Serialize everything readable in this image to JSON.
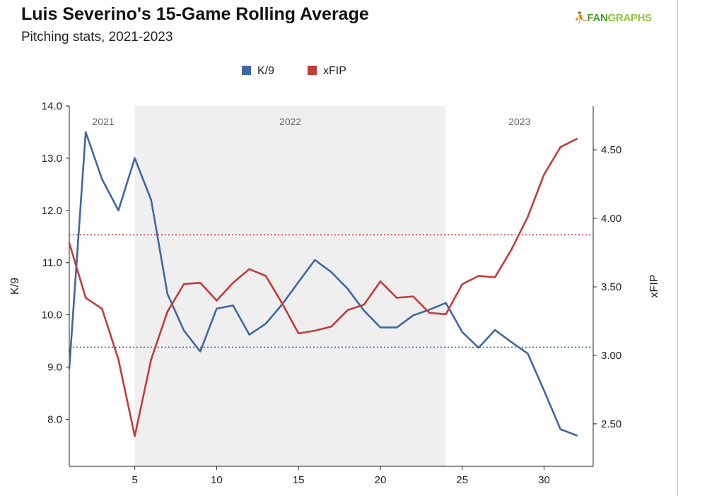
{
  "header": {
    "title": "Luis Severino's 15-Game Rolling Average",
    "subtitle": "Pitching stats, 2021-2023",
    "logo_fan": "FAN",
    "logo_graphs": "GRAPHS"
  },
  "chart_data": {
    "type": "line",
    "title": "Luis Severino's 15-Game Rolling Average",
    "subtitle": "Pitching stats, 2021-2023",
    "x": [
      1,
      2,
      3,
      4,
      5,
      6,
      7,
      8,
      9,
      10,
      11,
      12,
      13,
      14,
      15,
      16,
      17,
      18,
      19,
      20,
      21,
      22,
      23,
      24,
      25,
      26,
      27,
      28,
      29,
      30,
      31,
      32
    ],
    "xlim": [
      1,
      33
    ],
    "xticks": [
      5,
      10,
      15,
      20,
      25,
      30
    ],
    "series": [
      {
        "name": "K/9",
        "axis": "left",
        "color": "#3f67a0",
        "values": [
          8.98,
          13.5,
          12.6,
          12.0,
          13.0,
          12.2,
          10.4,
          9.7,
          9.3,
          10.12,
          10.18,
          9.62,
          9.83,
          10.2,
          10.63,
          11.05,
          10.82,
          10.5,
          10.08,
          9.76,
          9.76,
          9.99,
          10.1,
          10.23,
          9.67,
          9.37,
          9.71,
          9.48,
          9.26,
          8.55,
          7.81,
          7.69
        ]
      },
      {
        "name": "xFIP",
        "axis": "right",
        "color": "#c23b3b",
        "values": [
          3.82,
          3.42,
          3.34,
          2.97,
          2.41,
          2.97,
          3.32,
          3.52,
          3.53,
          3.4,
          3.53,
          3.63,
          3.58,
          3.38,
          3.16,
          3.18,
          3.21,
          3.33,
          3.37,
          3.54,
          3.42,
          3.43,
          3.31,
          3.3,
          3.52,
          3.58,
          3.57,
          3.77,
          4.01,
          4.32,
          4.52,
          4.58
        ]
      }
    ],
    "reference_lines": [
      {
        "axis": "left",
        "value": 9.38,
        "color": "#3f67a0",
        "style": "dotted"
      },
      {
        "axis": "right",
        "value": 3.88,
        "color": "#c23b3b",
        "style": "dotted"
      }
    ],
    "regions": [
      {
        "label": "2021",
        "x_start": 1,
        "x_end": 5,
        "shaded": false
      },
      {
        "label": "2022",
        "x_start": 5,
        "x_end": 24,
        "shaded": true
      },
      {
        "label": "2023",
        "x_start": 24,
        "x_end": 33,
        "shaded": false
      }
    ],
    "y_left": {
      "label": "K/9",
      "ylim": [
        7.1,
        14.0
      ],
      "ticks": [
        8.0,
        9.0,
        10.0,
        11.0,
        12.0,
        13.0,
        14.0
      ],
      "tick_labels": [
        "8.0",
        "9.0",
        "10.0",
        "11.0",
        "12.0",
        "13.0",
        "14.0"
      ]
    },
    "y_right": {
      "label": "xFIP",
      "ylim": [
        2.19,
        4.82
      ],
      "ticks": [
        2.5,
        3.0,
        3.5,
        4.0,
        4.5
      ],
      "tick_labels": [
        "2.50",
        "3.00",
        "3.50",
        "4.00",
        "4.50"
      ]
    },
    "legend_placement": "top-center",
    "grid": false,
    "region_shade_color": "#efefef"
  }
}
